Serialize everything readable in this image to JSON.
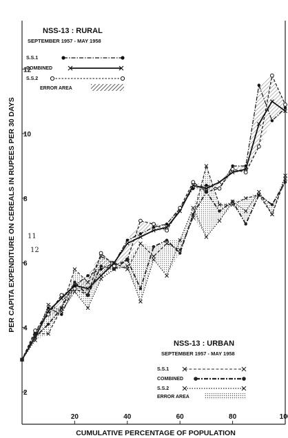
{
  "chart_data": {
    "type": "line",
    "xlabel": "CUMULATIVE PERCENTAGE OF POPULATION",
    "ylabel": "PER CAPITA EXPENDITURE ON CEREALS IN RUPEES PER 30 DAYS",
    "xlim": [
      0,
      100
    ],
    "ylim": [
      1,
      13.5
    ],
    "x_ticks": [
      20,
      40,
      60,
      80,
      100
    ],
    "y_ticks": [
      2,
      4,
      6,
      8,
      10,
      12
    ],
    "grid": false,
    "stray_marks": [
      "11",
      "12"
    ],
    "colors": {
      "rural": "#111111",
      "urban": "#222222",
      "error_area": "#777777"
    },
    "panels": [
      {
        "name": "rural",
        "legend_position": "top-left",
        "title": "NSS-13 : RURAL",
        "subtitle": "SEPTEMBER 1957 - MAY 1958",
        "legend_items": [
          "S.S.1",
          "COMBINED",
          "S.S.2",
          "ERROR AREA"
        ],
        "x": [
          0,
          5,
          10,
          15,
          20,
          25,
          30,
          35,
          40,
          45,
          50,
          55,
          60,
          65,
          70,
          75,
          80,
          85,
          90,
          95,
          100
        ],
        "series": [
          {
            "name": "S.S.1",
            "style": "dash-dot",
            "marker": "filled-circle",
            "values": [
              3.0,
              3.8,
              4.6,
              4.4,
              5.3,
              5.6,
              5.8,
              6.0,
              6.7,
              6.9,
              7.1,
              7.2,
              7.7,
              8.3,
              8.4,
              8.3,
              9.0,
              9.0,
              11.5,
              10.4,
              10.8
            ]
          },
          {
            "name": "COMBINED",
            "style": "solid",
            "marker": "x",
            "values": [
              3.0,
              3.7,
              4.5,
              4.9,
              5.3,
              5.2,
              5.6,
              6.0,
              6.6,
              6.8,
              7.0,
              7.1,
              7.6,
              8.4,
              8.3,
              8.5,
              8.8,
              8.9,
              10.3,
              11.0,
              10.7
            ]
          },
          {
            "name": "S.S.2",
            "style": "dashed",
            "marker": "open-circle",
            "values": [
              3.0,
              3.9,
              4.4,
              5.0,
              5.2,
              5.0,
              6.3,
              5.9,
              6.1,
              7.3,
              7.2,
              7.0,
              7.7,
              8.5,
              8.2,
              8.3,
              8.9,
              8.8,
              9.6,
              11.8,
              10.9
            ]
          }
        ]
      },
      {
        "name": "urban",
        "legend_position": "bottom-right",
        "title": "NSS-13 : URBAN",
        "subtitle": "SEPTEMBER 1957 - MAY 1958",
        "legend_items": [
          "S.S.1",
          "COMBINED",
          "S.S.2",
          "ERROR AREA"
        ],
        "x": [
          0,
          5,
          10,
          15,
          20,
          25,
          30,
          35,
          40,
          45,
          50,
          55,
          60,
          65,
          70,
          75,
          80,
          85,
          90,
          95,
          100
        ],
        "series": [
          {
            "name": "S.S.1",
            "style": "dashed",
            "marker": "x",
            "values": [
              3.0,
              3.8,
              3.8,
              4.6,
              5.8,
              5.4,
              6.2,
              6.0,
              5.8,
              6.6,
              6.2,
              6.6,
              6.4,
              7.4,
              9.0,
              7.8,
              7.8,
              8.0,
              8.1,
              7.5,
              8.6
            ]
          },
          {
            "name": "COMBINED",
            "style": "dash-dot",
            "marker": "filled-circle",
            "values": [
              3.0,
              3.7,
              4.1,
              4.6,
              5.4,
              5.0,
              5.9,
              5.8,
              6.1,
              5.2,
              6.5,
              6.7,
              6.3,
              7.5,
              8.2,
              7.6,
              7.9,
              7.2,
              8.1,
              7.8,
              8.5
            ]
          },
          {
            "name": "S.S.2",
            "style": "dotted",
            "marker": "x",
            "values": [
              3.0,
              3.6,
              4.7,
              4.5,
              5.1,
              4.6,
              5.5,
              5.8,
              5.9,
              4.8,
              6.1,
              5.6,
              6.7,
              7.7,
              6.8,
              7.3,
              7.9,
              7.6,
              8.2,
              7.5,
              8.7
            ]
          }
        ]
      }
    ]
  }
}
